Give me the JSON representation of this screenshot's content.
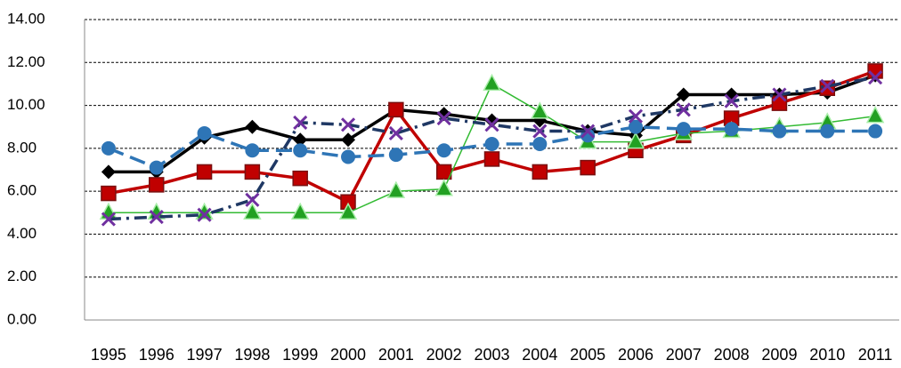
{
  "chart_data": {
    "type": "line",
    "categories": [
      "1995",
      "1996",
      "1997",
      "1998",
      "1999",
      "2000",
      "2001",
      "2002",
      "2003",
      "2004",
      "2005",
      "2006",
      "2007",
      "2008",
      "2009",
      "2010",
      "2011"
    ],
    "series": [
      {
        "color": "#000000",
        "marker": "diamond",
        "dash": "solid",
        "values": [
          6.9,
          6.9,
          8.5,
          9.0,
          8.4,
          8.4,
          9.8,
          9.6,
          9.3,
          9.3,
          8.8,
          8.6,
          10.5,
          10.5,
          10.5,
          10.6,
          11.4
        ]
      },
      {
        "color": "#c00000",
        "marker": "square",
        "dash": "solid",
        "values": [
          5.9,
          6.3,
          6.9,
          6.9,
          6.6,
          5.5,
          9.8,
          6.9,
          7.5,
          6.9,
          7.1,
          7.9,
          8.6,
          9.4,
          10.1,
          10.8,
          11.6
        ]
      },
      {
        "color": "#33bb33",
        "marker": "triangle",
        "dash": "solid",
        "values": [
          5.0,
          5.0,
          5.0,
          5.0,
          5.0,
          5.0,
          6.0,
          6.1,
          11.0,
          9.7,
          8.3,
          8.3,
          8.7,
          8.8,
          9.0,
          9.2,
          9.5
        ]
      },
      {
        "color": "#2e75b6",
        "marker": "circle",
        "dash": "dashed",
        "values": [
          8.0,
          7.1,
          8.7,
          7.9,
          7.9,
          7.6,
          7.7,
          7.9,
          8.2,
          8.2,
          8.6,
          9.0,
          8.9,
          8.9,
          8.8,
          8.8,
          8.8
        ]
      },
      {
        "color": "#1f3864",
        "marker": "x",
        "dash": "dashed",
        "values": [
          4.7,
          4.8,
          4.9,
          5.6,
          9.2,
          9.1,
          8.7,
          9.4,
          9.1,
          8.8,
          8.8,
          9.5,
          9.8,
          10.2,
          10.5,
          10.9,
          11.3
        ]
      }
    ],
    "ylim": [
      0,
      14
    ],
    "yticks": [
      {
        "value": 0,
        "label": "0.00"
      },
      {
        "value": 2,
        "label": "2.00"
      },
      {
        "value": 4,
        "label": "4.00"
      },
      {
        "value": 6,
        "label": "6.00"
      },
      {
        "value": 8,
        "label": "8.00"
      },
      {
        "value": 10,
        "label": "10.00"
      },
      {
        "value": 12,
        "label": "12.00"
      },
      {
        "value": 14,
        "label": "14.00"
      }
    ],
    "grid": true
  }
}
